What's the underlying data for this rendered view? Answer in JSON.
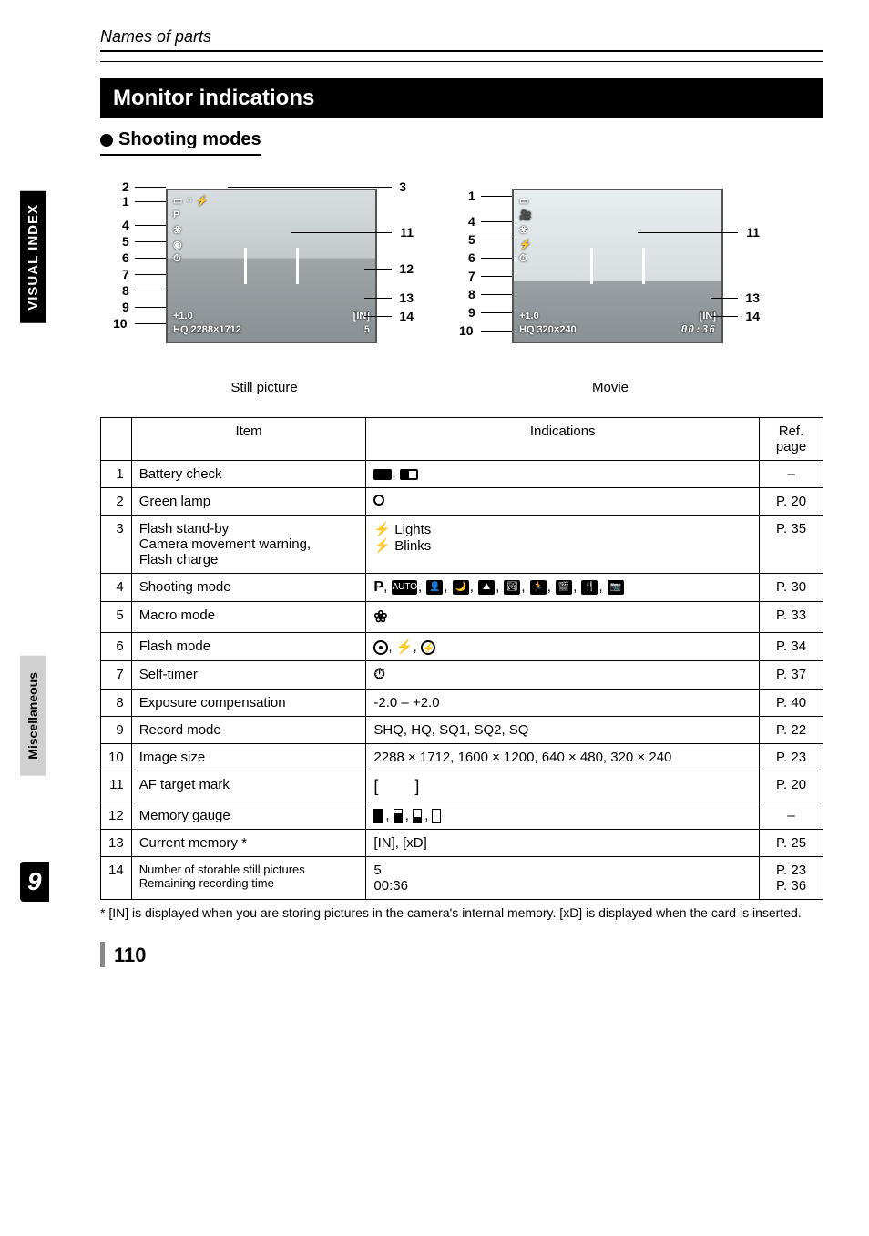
{
  "header": {
    "breadcrumb": "Names of parts"
  },
  "section": {
    "title": "Monitor indications",
    "sub": "Shooting modes"
  },
  "sidebar": {
    "visual": "VISUAL INDEX",
    "misc": "Miscellaneous",
    "chapter": "9"
  },
  "diagrams": {
    "still_caption": "Still picture",
    "movie_caption": "Movie",
    "still": {
      "left_nums": [
        "2",
        "1",
        "4",
        "5",
        "6",
        "7",
        "8",
        "9",
        "10"
      ],
      "right_nums": [
        "3",
        "11",
        "12",
        "13",
        "14"
      ],
      "ev": "+1.0",
      "rec": "HQ 2288×1712",
      "mem": "[IN]",
      "count": "5"
    },
    "movie": {
      "left_nums": [
        "1",
        "4",
        "5",
        "6",
        "7",
        "8",
        "9",
        "10"
      ],
      "right_nums": [
        "11",
        "13",
        "14"
      ],
      "ev": "+1.0",
      "rec": "HQ 320×240",
      "mem": "[IN]",
      "time": "00:36"
    }
  },
  "table": {
    "headers": {
      "item": "Item",
      "ind": "Indications",
      "ref": "Ref.\npage"
    },
    "rows": [
      {
        "n": "1",
        "item": "Battery check",
        "ind_type": "battery",
        "ref": "–"
      },
      {
        "n": "2",
        "item": "Green lamp",
        "ind_type": "circle",
        "ref": "P. 20"
      },
      {
        "n": "3",
        "item": "Flash stand-by\nCamera movement warning,\nFlash charge",
        "ind_type": "flash_lights",
        "ind_a": "Lights",
        "ind_b": "Blinks",
        "ref": "P. 35"
      },
      {
        "n": "4",
        "item": "Shooting mode",
        "ind_type": "modes",
        "ref": "P. 30"
      },
      {
        "n": "5",
        "item": "Macro mode",
        "ind_type": "macro",
        "ref": "P. 33"
      },
      {
        "n": "6",
        "item": "Flash mode",
        "ind_type": "flashmodes",
        "ref": "P. 34"
      },
      {
        "n": "7",
        "item": "Self-timer",
        "ind_type": "selftimer",
        "ref": "P. 37"
      },
      {
        "n": "8",
        "item": "Exposure compensation",
        "ind_text": "-2.0 – +2.0",
        "ref": "P. 40"
      },
      {
        "n": "9",
        "item": "Record mode",
        "ind_text": "SHQ, HQ, SQ1, SQ2, SQ",
        "ref": "P. 22"
      },
      {
        "n": "10",
        "item": "Image size",
        "ind_text": "2288 × 1712, 1600 × 1200, 640 × 480, 320 × 240",
        "ref": "P. 23"
      },
      {
        "n": "11",
        "item": "AF target mark",
        "ind_type": "af",
        "ref": "P. 20"
      },
      {
        "n": "12",
        "item": "Memory gauge",
        "ind_type": "gauge",
        "ref": "–"
      },
      {
        "n": "13",
        "item": "Current memory *",
        "ind_text": "[IN], [xD]",
        "ref": "P. 25"
      },
      {
        "n": "14",
        "item": "Number of storable still pictures\nRemaining recording time",
        "ind_text": "5\n00:36",
        "ref": "P. 23\nP. 36",
        "small": true
      }
    ]
  },
  "footnote": "*   [IN] is displayed when you are storing pictures in the camera's internal memory. [xD] is displayed when the card is inserted.",
  "page_number": "110"
}
